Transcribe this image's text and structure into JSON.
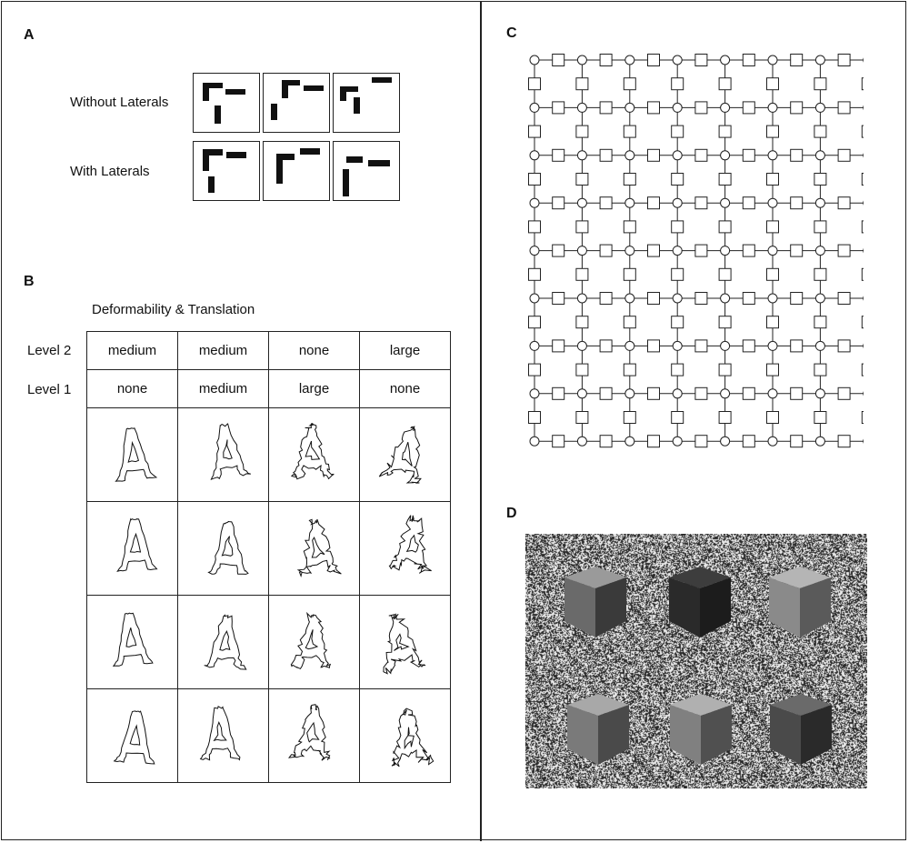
{
  "panels": {
    "a": {
      "label": "A",
      "rows": [
        {
          "label": "Without Laterals"
        },
        {
          "label": "With Laterals"
        }
      ]
    },
    "b": {
      "label": "B",
      "title": "Deformability & Translation",
      "level_rows": [
        {
          "label": "Level 2",
          "values": [
            "medium",
            "medium",
            "none",
            "large"
          ]
        },
        {
          "label": "Level 1",
          "values": [
            "none",
            "medium",
            "large",
            "none"
          ]
        }
      ]
    },
    "c": {
      "label": "C"
    },
    "d": {
      "label": "D"
    }
  },
  "colors": {
    "ink": "#111111",
    "active_unit": "#5f6b6b",
    "node_fill": "#ffffff"
  }
}
